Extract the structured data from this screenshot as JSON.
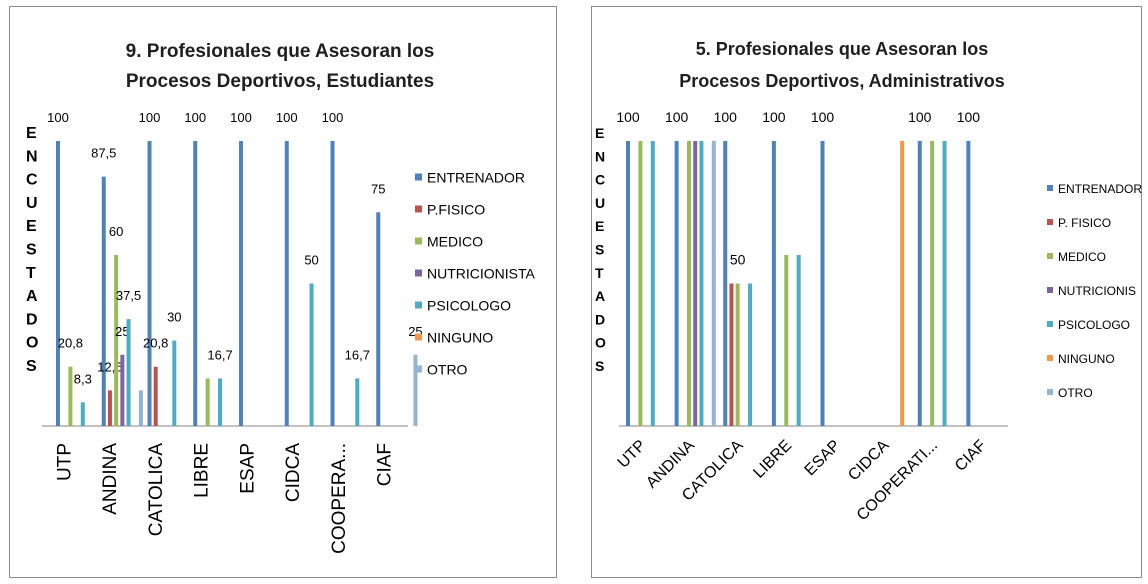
{
  "chart_data": [
    {
      "type": "bar",
      "title_lines": [
        "9. Profesionales que Asesoran los",
        "Procesos Deportivos, Estudiantes"
      ],
      "ylabel_letters": [
        "E",
        "N",
        "C",
        "U",
        "E",
        "S",
        "T",
        "A",
        "D",
        "O",
        "S"
      ],
      "categories": [
        "UTP",
        "ANDINA",
        "CATOLICA",
        "LIBRE",
        "ESAP",
        "CIDCA",
        "COOPERA...",
        "CIAF"
      ],
      "ylim": [
        0,
        100
      ],
      "grid": false,
      "legend_position": "right",
      "series": [
        {
          "name": "ENTRENADOR",
          "color": "#4f81bd",
          "values": [
            100,
            87.5,
            100,
            100,
            100,
            100,
            100,
            75
          ],
          "labels": [
            "100",
            "87,5",
            "100",
            "100",
            "100",
            "100",
            "100",
            "75"
          ]
        },
        {
          "name": "P.FISICO",
          "color": "#c0504d",
          "values": [
            0,
            12.5,
            20.8,
            0,
            0,
            0,
            0,
            0
          ],
          "labels": [
            "",
            "12,5",
            "20,8",
            "",
            "",
            "",
            "",
            ""
          ]
        },
        {
          "name": "MEDICO",
          "color": "#9bbb59",
          "values": [
            20.8,
            60,
            0,
            16.7,
            0,
            0,
            0,
            0
          ],
          "labels": [
            "20,8",
            "60",
            "",
            "",
            "",
            "",
            "",
            ""
          ]
        },
        {
          "name": "NUTRICIONISTA",
          "color": "#8064a2",
          "values": [
            0,
            25,
            0,
            0,
            0,
            0,
            0,
            0
          ],
          "labels": [
            "",
            "25",
            "",
            "",
            "",
            "",
            "",
            ""
          ]
        },
        {
          "name": "PSICOLOGO",
          "color": "#4bacc6",
          "values": [
            8.3,
            37.5,
            30,
            16.7,
            0,
            50,
            16.7,
            0
          ],
          "labels": [
            "8,3",
            "37,5",
            "30",
            "16,7",
            "",
            "50",
            "16,7",
            ""
          ]
        },
        {
          "name": "NINGUNO",
          "color": "#f79646",
          "values": [
            0,
            0,
            0,
            0,
            0,
            0,
            0,
            0
          ],
          "labels": [
            "",
            "",
            "",
            "",
            "",
            "",
            "",
            ""
          ]
        },
        {
          "name": "OTRO",
          "color": "#95b3d7",
          "values": [
            0,
            12.5,
            0,
            0,
            0,
            0,
            0,
            25
          ],
          "labels": [
            "",
            "",
            "",
            "",
            "",
            "",
            "",
            "25"
          ]
        }
      ]
    },
    {
      "type": "bar",
      "title_lines": [
        "5. Profesionales que Asesoran los",
        "Procesos Deportivos, Administrativos"
      ],
      "ylabel_letters": [
        "E",
        "N",
        "C",
        "U",
        "E",
        "S",
        "T",
        "A",
        "D",
        "O",
        "S"
      ],
      "categories": [
        "UTP",
        "ANDINA",
        "CATOLICA",
        "LIBRE",
        "ESAP",
        "CIDCA",
        "COOPERATI...",
        "CIAF"
      ],
      "ylim": [
        0,
        100
      ],
      "grid": false,
      "legend_position": "right",
      "series": [
        {
          "name": "ENTRENADOR",
          "color": "#4f81bd",
          "values": [
            100,
            100,
            100,
            100,
            100,
            0,
            100,
            100
          ],
          "labels": [
            "100",
            "100",
            "100",
            "100",
            "100",
            "",
            "100",
            "100"
          ]
        },
        {
          "name": "P. FISICO",
          "color": "#c0504d",
          "values": [
            0,
            0,
            50,
            0,
            0,
            0,
            0,
            0
          ],
          "labels": [
            "",
            "",
            "",
            "",
            "",
            "",
            "",
            ""
          ]
        },
        {
          "name": "MEDICO",
          "color": "#9bbb59",
          "values": [
            100,
            100,
            50,
            60,
            0,
            0,
            100,
            0
          ],
          "labels": [
            "",
            "",
            "50",
            "",
            "",
            "",
            "",
            ""
          ]
        },
        {
          "name": "NUTRICIONIS",
          "color": "#8064a2",
          "values": [
            0,
            100,
            0,
            0,
            0,
            0,
            0,
            0
          ],
          "labels": [
            "",
            "",
            "",
            "",
            "",
            "",
            "",
            ""
          ]
        },
        {
          "name": "PSICOLOGO",
          "color": "#4bacc6",
          "values": [
            100,
            100,
            50,
            60,
            0,
            0,
            100,
            0
          ],
          "labels": [
            "",
            "",
            "",
            "",
            "",
            "",
            "",
            ""
          ]
        },
        {
          "name": "NINGUNO",
          "color": "#f79646",
          "values": [
            0,
            0,
            0,
            0,
            0,
            100,
            0,
            0
          ],
          "labels": [
            "",
            "",
            "",
            "",
            "",
            "",
            "",
            ""
          ]
        },
        {
          "name": "OTRO",
          "color": "#95b3d7",
          "values": [
            0,
            100,
            0,
            0,
            0,
            0,
            0,
            0
          ],
          "labels": [
            "",
            "",
            "",
            "",
            "",
            "",
            "",
            ""
          ]
        }
      ]
    }
  ]
}
